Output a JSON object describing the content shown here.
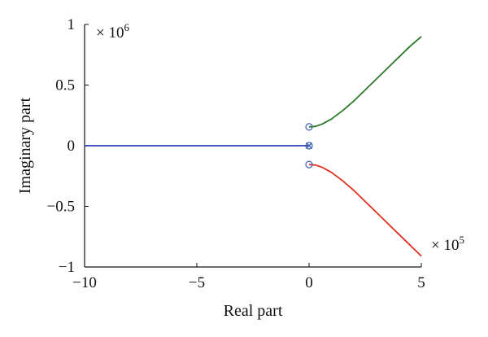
{
  "chart_data": {
    "type": "line",
    "title": "",
    "xlabel": "Real part",
    "ylabel": "Imaginary part",
    "xlim": [
      -10,
      5
    ],
    "ylim": [
      -1,
      1
    ],
    "x_ticks": [
      -10,
      -5,
      0,
      5
    ],
    "x_tick_labels": [
      "−10",
      "−5",
      "0",
      "5"
    ],
    "y_ticks": [
      -1,
      -0.5,
      0,
      0.5,
      1
    ],
    "y_tick_labels": [
      "−1",
      "−0.5",
      "0",
      "0.5",
      "1"
    ],
    "x_multiplier": {
      "base": "× 10",
      "exp": "5"
    },
    "y_multiplier": {
      "base": "× 10",
      "exp": "6"
    },
    "grid": false,
    "series": [
      {
        "color": "#2f3fb4",
        "x": [
          -10,
          -5,
          0
        ],
        "y": [
          0,
          0,
          0
        ]
      },
      {
        "color": "#2a7a2a",
        "x": [
          0,
          0.3,
          0.6,
          1.0,
          1.5,
          2.0,
          2.5,
          3.0,
          3.5,
          4.0,
          4.5,
          5.0
        ],
        "y": [
          0.155,
          0.16,
          0.18,
          0.22,
          0.29,
          0.37,
          0.46,
          0.55,
          0.64,
          0.73,
          0.82,
          0.9
        ]
      },
      {
        "color": "#e03020",
        "x": [
          0,
          0.3,
          0.6,
          1.0,
          1.5,
          2.0,
          2.5,
          3.0,
          3.5,
          4.0,
          4.5,
          5.0
        ],
        "y": [
          -0.155,
          -0.16,
          -0.18,
          -0.22,
          -0.29,
          -0.37,
          -0.46,
          -0.55,
          -0.64,
          -0.73,
          -0.82,
          -0.91
        ]
      }
    ],
    "markers": [
      {
        "symbol": "o",
        "color": "#3a60b0",
        "x": 0,
        "y": 0.155
      },
      {
        "symbol": "o",
        "color": "#3a60b0",
        "x": 0,
        "y": -0.155
      },
      {
        "symbol": "o",
        "color": "#3a60b0",
        "x": 0,
        "y": 0
      },
      {
        "symbol": "x",
        "color": "#3a60b0",
        "x": 0,
        "y": 0
      }
    ]
  }
}
